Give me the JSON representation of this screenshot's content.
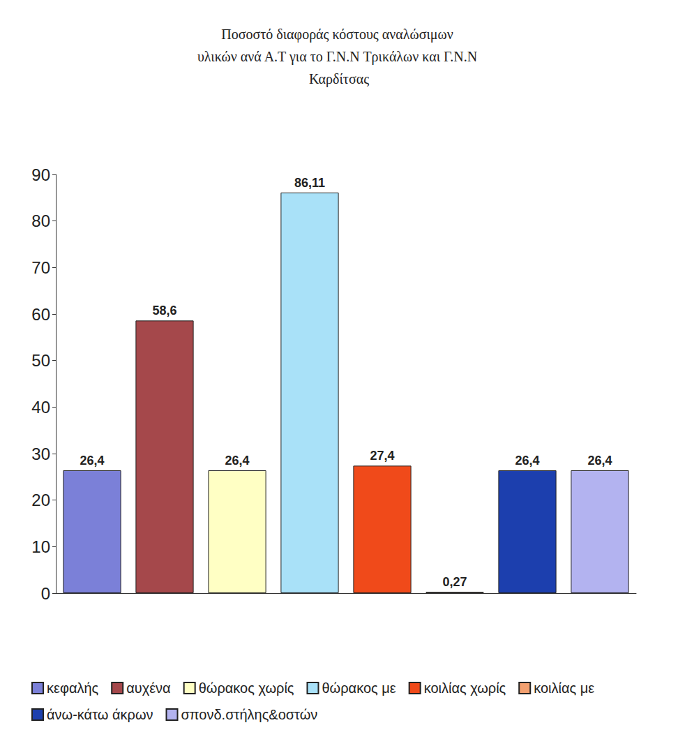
{
  "chart_data": {
    "type": "bar",
    "title": "Ποσοστό διαφοράς κόστους αναλώσιμων υλικών ανά Α.Τ για το Γ.Ν.Ν Τρικάλων και Γ.Ν.Ν Καρδίτσας",
    "categories": [
      "κεφαλής",
      "αυχένα",
      "θώρακος χωρίς",
      "θώρακος με",
      "κοιλίας χωρίς",
      "κοιλίας με",
      "άνω-κάτω άκρων",
      "σπονδ.στήλης&οστών"
    ],
    "values": [
      26.4,
      58.6,
      26.4,
      86.11,
      27.4,
      0.27,
      26.4,
      26.4
    ],
    "value_labels": [
      "26,4",
      "58,6",
      "26,4",
      "86,11",
      "27,4",
      "0,27",
      "26,4",
      "26,4"
    ],
    "colors": [
      "#7b80d8",
      "#a5484b",
      "#ffffc4",
      "#a9e1f8",
      "#f04a1a",
      "#f2a070",
      "#1c3fae",
      "#b3b3f0"
    ],
    "ylim": [
      0,
      90
    ],
    "yticks": [
      0,
      10,
      20,
      30,
      40,
      50,
      60,
      70,
      80,
      90
    ],
    "grid": false,
    "legend": "bottom",
    "data_labels": true,
    "tick_labels": "y"
  }
}
